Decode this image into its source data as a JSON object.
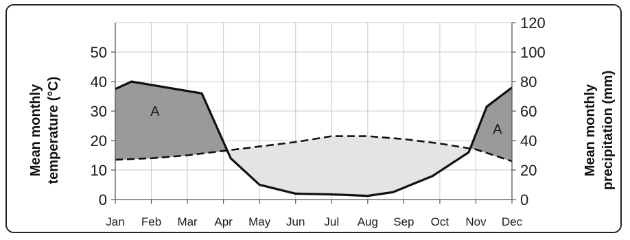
{
  "chart_data": {
    "type": "line",
    "categories": [
      "Jan",
      "Feb",
      "Mar",
      "Apr",
      "May",
      "Jun",
      "Jul",
      "Aug",
      "Sep",
      "Oct",
      "Nov",
      "Dec"
    ],
    "left_axis": {
      "label_line1": "Mean monthly",
      "label_line2": "temperature (°C)",
      "ylim": [
        0,
        60
      ],
      "ticks": [
        0,
        10,
        20,
        30,
        40,
        50
      ]
    },
    "right_axis": {
      "label_line1": "Mean monthly",
      "label_line2": "precipitation (mm)",
      "ylim": [
        0,
        120
      ],
      "ticks": [
        0,
        20,
        40,
        60,
        80,
        100,
        120
      ]
    },
    "series": [
      {
        "style": "dashed",
        "axis": "left",
        "x": [
          0,
          1,
          2,
          3,
          4,
          5,
          6,
          7,
          8,
          9,
          10,
          11
        ],
        "values": [
          13.5,
          14,
          15,
          16.5,
          18,
          19.5,
          21.5,
          21.5,
          20.5,
          19,
          17,
          13
        ]
      },
      {
        "style": "solid",
        "axis": "right",
        "x": [
          0,
          0.45,
          2.4,
          3.2,
          4,
          5,
          6,
          7,
          7.7,
          8.8,
          9.8,
          10.3,
          11
        ],
        "values": [
          75,
          80,
          72,
          28,
          10,
          4,
          3.5,
          2.5,
          5,
          16,
          32,
          63,
          76
        ]
      }
    ],
    "region_labels": [
      "A",
      "A"
    ],
    "grid": true,
    "colors": {
      "surplus_fill": "#9a9a9a",
      "deficit_fill": "#e4e4e4",
      "line": "#111111",
      "grid": "#c8c8c8",
      "frame": "#222222"
    }
  }
}
